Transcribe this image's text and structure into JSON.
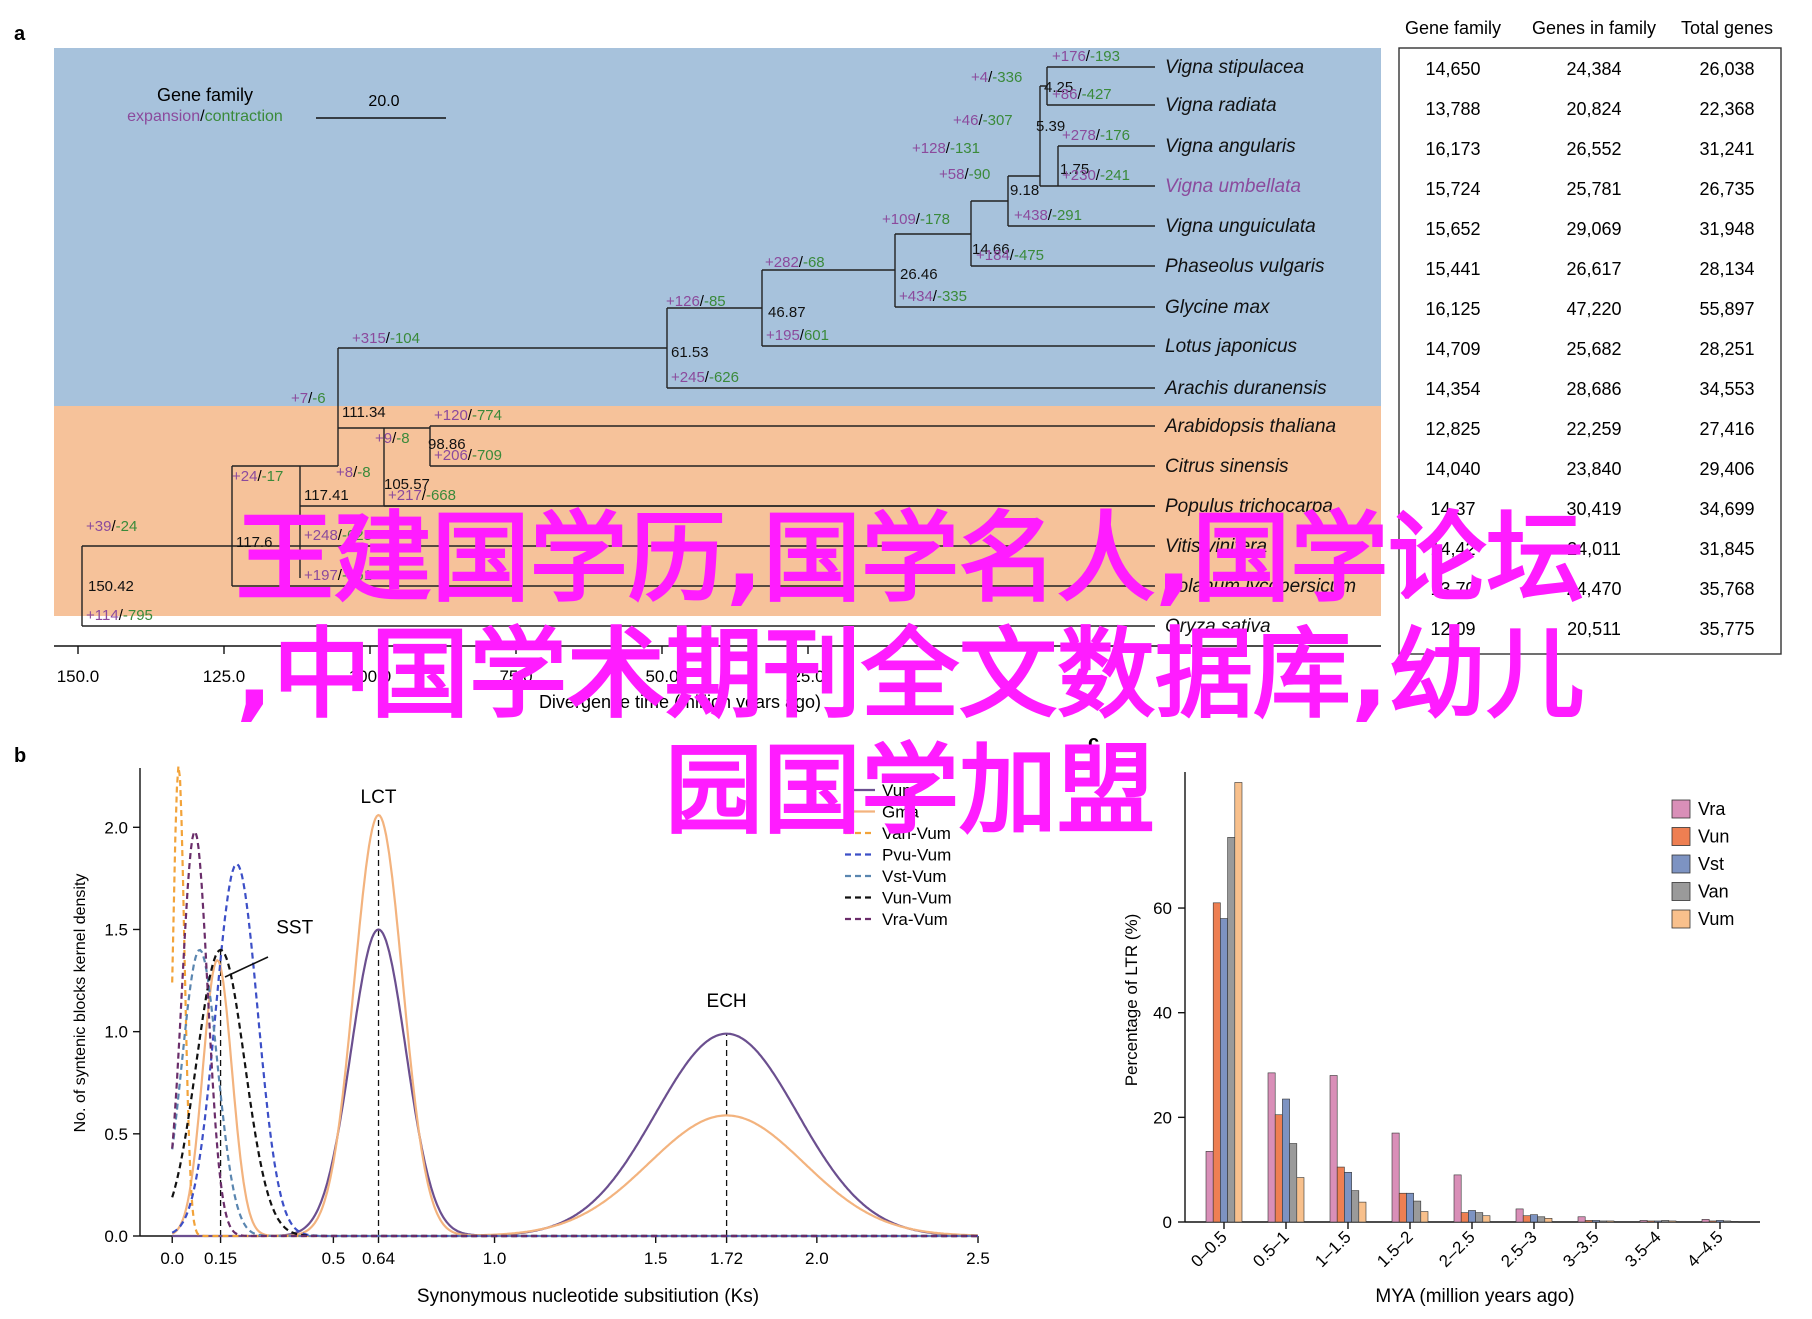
{
  "panel_labels": {
    "a": "a",
    "b": "b",
    "c": "c"
  },
  "chart_data": [
    {
      "type": "tree",
      "panel": "a",
      "legend": {
        "title": "Gene family",
        "expansion": "expansion",
        "separator": "/",
        "contraction": "contraction",
        "scale": "20.0"
      },
      "xlabel": "Divergence time (million years ago)",
      "xticks": [
        "150.0",
        "125.0",
        "100.0",
        "75.0",
        "50.0",
        "25.0"
      ],
      "colors": {
        "expansion": "#8b4a9c",
        "contraction": "#3a8a3a",
        "legume_bg": "#a7c2dc",
        "nonlegume_bg": "#f6c29a"
      },
      "table_headers": [
        "Gene family",
        "Genes in family",
        "Total genes"
      ],
      "species": [
        {
          "name": "Vigna stipulacea",
          "gf": "14,650",
          "gif": "24,384",
          "total": "26,038",
          "exp": "+176",
          "con": "-193",
          "highlight": false
        },
        {
          "name": "Vigna radiata",
          "gf": "13,788",
          "gif": "20,824",
          "total": "22,368",
          "exp": "+86",
          "con": "-427",
          "highlight": false
        },
        {
          "name": "Vigna angularis",
          "gf": "16,173",
          "gif": "26,552",
          "total": "31,241",
          "exp": "+278",
          "con": "-176",
          "highlight": false
        },
        {
          "name": "Vigna umbellata",
          "gf": "15,724",
          "gif": "25,781",
          "total": "26,735",
          "exp": "+230",
          "con": "-241",
          "highlight": true
        },
        {
          "name": "Vigna unguiculata",
          "gf": "15,652",
          "gif": "29,069",
          "total": "31,948",
          "exp": "+438",
          "con": "-291",
          "highlight": false
        },
        {
          "name": "Phaseolus vulgaris",
          "gf": "15,441",
          "gif": "26,617",
          "total": "28,134",
          "exp": "+184",
          "con": "-475",
          "highlight": false
        },
        {
          "name": "Glycine max",
          "gf": "16,125",
          "gif": "47,220",
          "total": "55,897",
          "exp": "+434",
          "con": "-335",
          "highlight": false
        },
        {
          "name": "Lotus japonicus",
          "gf": "14,709",
          "gif": "25,682",
          "total": "28,251",
          "exp": "+195",
          "con": "601",
          "highlight": false
        },
        {
          "name": "Arachis duranensis",
          "gf": "14,354",
          "gif": "28,686",
          "total": "34,553",
          "exp": "+245",
          "con": "-626",
          "highlight": false
        },
        {
          "name": "Arabidopsis thaliana",
          "gf": "12,825",
          "gif": "22,259",
          "total": "27,416",
          "exp": "+120",
          "con": "-774",
          "highlight": false
        },
        {
          "name": "Citrus sinensis",
          "gf": "14,040",
          "gif": "23,840",
          "total": "29,406",
          "exp": "+206",
          "con": "-709",
          "highlight": false
        },
        {
          "name": "Populus trichocarpa",
          "gf": "14,37",
          "gif": "30,419",
          "total": "34,699",
          "exp": "+217",
          "con": "-668",
          "highlight": false
        },
        {
          "name": "Vitis vinifera",
          "gf": "14,42",
          "gif": "24,011",
          "total": "31,845",
          "exp": "+248",
          "con": "-625",
          "highlight": false
        },
        {
          "name": "Solanum lycopersicum",
          "gf": "13,70",
          "gif": "24,470",
          "total": "35,768",
          "exp": "+197",
          "con": "-761",
          "highlight": false
        },
        {
          "name": "Oryza sativa",
          "gf": "12,09",
          "gif": "20,511",
          "total": "35,775",
          "exp": "+114",
          "con": "-795",
          "highlight": false
        }
      ],
      "node_ages": [
        "4.25",
        "5.39",
        "1.75",
        "9.18",
        "14.66",
        "26.46",
        "46.87",
        "61.53",
        "111.34",
        "98.86",
        "105.57",
        "117.41",
        "117.6",
        "150.42"
      ],
      "branch_labels": [
        {
          "exp": "+4",
          "con": "-336"
        },
        {
          "exp": "+46",
          "con": "-307"
        },
        {
          "exp": "+128",
          "con": "-131"
        },
        {
          "exp": "+58",
          "con": "-90"
        },
        {
          "exp": "+109",
          "con": "-178"
        },
        {
          "exp": "+282",
          "con": "-68"
        },
        {
          "exp": "+126",
          "con": "-85"
        },
        {
          "exp": "+315",
          "con": "-104"
        },
        {
          "exp": "+7",
          "con": "-6"
        },
        {
          "exp": "+9",
          "con": "-8"
        },
        {
          "exp": "+8",
          "con": "-8"
        },
        {
          "exp": "+24",
          "con": "-17"
        },
        {
          "exp": "+39",
          "con": "-24"
        }
      ]
    },
    {
      "type": "line",
      "panel": "b",
      "xlabel": "Synonymous nucleotide subsitiution (Ks)",
      "ylabel": "No. of syntenic blocks kernel density",
      "xlim": [
        -0.1,
        2.5
      ],
      "ylim": [
        0,
        2.3
      ],
      "xticks": [
        0.0,
        0.15,
        0.5,
        0.64,
        1.0,
        1.5,
        1.72,
        2.0,
        2.5
      ],
      "xtick_labels": [
        "0.0",
        "0.15",
        "0.5",
        "0.64",
        "1.0",
        "1.5",
        "1.72",
        "2.0",
        "2.5"
      ],
      "yticks": [
        0.0,
        0.5,
        1.0,
        1.5,
        2.0
      ],
      "ytick_labels": [
        "0.0",
        "0.5",
        "1.0",
        "1.5",
        "2.0"
      ],
      "vlines": [
        0.15,
        0.64,
        1.72
      ],
      "annotations": [
        {
          "text": "LCT",
          "x": 0.64,
          "y": 2.12
        },
        {
          "text": "ECH",
          "x": 1.72,
          "y": 1.12
        },
        {
          "text": "SST",
          "x": 0.38,
          "y": 1.48
        }
      ],
      "series": [
        {
          "name": "Vum",
          "color": "#6b4f8f",
          "dash": "",
          "peaks": [
            {
              "mu": 0.64,
              "sd": 0.085,
              "h": 1.5
            },
            {
              "mu": 1.72,
              "sd": 0.22,
              "h": 0.99
            }
          ]
        },
        {
          "name": "Gma",
          "color": "#f3b37e",
          "dash": "",
          "peaks": [
            {
              "mu": 0.64,
              "sd": 0.075,
              "h": 2.06
            },
            {
              "mu": 1.72,
              "sd": 0.24,
              "h": 0.59
            },
            {
              "mu": 0.14,
              "sd": 0.045,
              "h": 1.35
            }
          ]
        },
        {
          "name": "Van-Vum",
          "color": "#f2a33a",
          "dash": "6,4",
          "peaks": [
            {
              "mu": 0.02,
              "sd": 0.018,
              "h": 2.3
            }
          ]
        },
        {
          "name": "Pvu-Vum",
          "color": "#3c4fc7",
          "dash": "6,4",
          "peaks": [
            {
              "mu": 0.2,
              "sd": 0.065,
              "h": 1.82
            }
          ]
        },
        {
          "name": "Vst-Vum",
          "color": "#5a86b0",
          "dash": "6,4",
          "peaks": [
            {
              "mu": 0.085,
              "sd": 0.055,
              "h": 1.4
            }
          ]
        },
        {
          "name": "Vun-Vum",
          "color": "#111111",
          "dash": "6,4",
          "peaks": [
            {
              "mu": 0.15,
              "sd": 0.075,
              "h": 1.4
            }
          ]
        },
        {
          "name": "Vra-Vum",
          "color": "#6a2d6a",
          "dash": "6,4",
          "peaks": [
            {
              "mu": 0.07,
              "sd": 0.04,
              "h": 1.98
            }
          ]
        }
      ]
    },
    {
      "type": "bar",
      "panel": "c",
      "xlabel": "MYA (million years ago)",
      "ylabel": "Percentage of LTR (%)",
      "ylim": [
        0,
        86
      ],
      "yticks": [
        0,
        20,
        40,
        60
      ],
      "categories": [
        "0–0.5",
        "0.5–1",
        "1–1.5",
        "1.5–2",
        "2–2.5",
        "2.5–3",
        "3–3.5",
        "3.5–4",
        "4–4.5"
      ],
      "series": [
        {
          "name": "Vra",
          "color": "#d98fb8",
          "values": [
            13.5,
            28.5,
            28,
            17,
            9,
            2.5,
            1,
            0.3,
            0.5
          ]
        },
        {
          "name": "Vun",
          "color": "#ee7f52",
          "values": [
            61,
            20.5,
            10.5,
            5.5,
            1.8,
            1.2,
            0.3,
            0.2,
            0.2
          ]
        },
        {
          "name": "Vst",
          "color": "#7d93c2",
          "values": [
            58,
            23.5,
            9.5,
            5.5,
            2.2,
            1.4,
            0.3,
            0.2,
            0.3
          ]
        },
        {
          "name": "Van",
          "color": "#9a9a9a",
          "values": [
            73.5,
            15,
            6,
            4,
            1.8,
            1,
            0.2,
            0.3,
            0.2
          ]
        },
        {
          "name": "Vum",
          "color": "#f8c08c",
          "values": [
            84,
            8.5,
            3.8,
            2,
            1.2,
            0.7,
            0.2,
            0.2,
            0.1
          ]
        }
      ]
    }
  ],
  "overlay": {
    "line1": "王建国学历,国学名人,国学论坛",
    "line2": ",中国学术期刊全文数据库,幼儿",
    "line3": "园国学加盟",
    "color": "#ff1cff"
  }
}
